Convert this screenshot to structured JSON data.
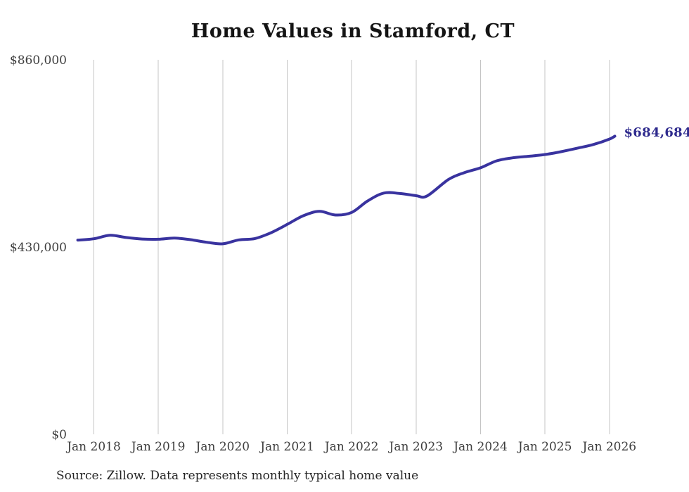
{
  "footer": {
    "source": "Source: Zillow. Data represents monthly typical home value"
  },
  "chart_data": {
    "type": "line",
    "title": "Home Values in Stamford, CT",
    "xlabel": "",
    "ylabel": "",
    "ylim": [
      0,
      860000
    ],
    "x_unit": "months since Jan 2018",
    "x_range": [
      "Oct 2017",
      "Feb 2026"
    ],
    "grid": "vertical-only",
    "legend": "none",
    "gridline_color": "#c4c4c4",
    "axis_label_color": "#3e3e3e",
    "y_ticks": [
      {
        "v": 0,
        "label": "$0"
      },
      {
        "v": 430000,
        "label": "$430,000"
      },
      {
        "v": 860000,
        "label": "$860,000"
      }
    ],
    "x_ticks": [
      {
        "m": 0,
        "label": "Jan 2018"
      },
      {
        "m": 12,
        "label": "Jan 2019"
      },
      {
        "m": 24,
        "label": "Jan 2020"
      },
      {
        "m": 36,
        "label": "Jan 2021"
      },
      {
        "m": 48,
        "label": "Jan 2022"
      },
      {
        "m": 60,
        "label": "Jan 2023"
      },
      {
        "m": 72,
        "label": "Jan 2024"
      },
      {
        "m": 84,
        "label": "Jan 2025"
      },
      {
        "m": 96,
        "label": "Jan 2026"
      }
    ],
    "series": [
      {
        "name": "Typical home value",
        "color": "#39339f",
        "points": [
          {
            "m": -3,
            "v": 446000
          },
          {
            "m": 0,
            "v": 449000
          },
          {
            "m": 3,
            "v": 457000
          },
          {
            "m": 6,
            "v": 452000
          },
          {
            "m": 9,
            "v": 448500
          },
          {
            "m": 12,
            "v": 448000
          },
          {
            "m": 15,
            "v": 450500
          },
          {
            "m": 18,
            "v": 447000
          },
          {
            "m": 21,
            "v": 441000
          },
          {
            "m": 24,
            "v": 437500
          },
          {
            "m": 27,
            "v": 446500
          },
          {
            "m": 30,
            "v": 449500
          },
          {
            "m": 33,
            "v": 463000
          },
          {
            "m": 36,
            "v": 482000
          },
          {
            "m": 39,
            "v": 502000
          },
          {
            "m": 42,
            "v": 512000
          },
          {
            "m": 45,
            "v": 503500
          },
          {
            "m": 48,
            "v": 509500
          },
          {
            "m": 51,
            "v": 536000
          },
          {
            "m": 54,
            "v": 554000
          },
          {
            "m": 57,
            "v": 553000
          },
          {
            "m": 60,
            "v": 548000
          },
          {
            "m": 62,
            "v": 547000
          },
          {
            "m": 66,
            "v": 585000
          },
          {
            "m": 69,
            "v": 601000
          },
          {
            "m": 72,
            "v": 612000
          },
          {
            "m": 75,
            "v": 628000
          },
          {
            "m": 78,
            "v": 635000
          },
          {
            "m": 81,
            "v": 638500
          },
          {
            "m": 84,
            "v": 642500
          },
          {
            "m": 87,
            "v": 649000
          },
          {
            "m": 90,
            "v": 657000
          },
          {
            "m": 93,
            "v": 665500
          },
          {
            "m": 96,
            "v": 678000
          },
          {
            "m": 97,
            "v": 684684
          }
        ]
      }
    ],
    "annotation": {
      "label": "$684,684",
      "m": 97,
      "v": 684684,
      "color": "#2e2a8d"
    }
  }
}
